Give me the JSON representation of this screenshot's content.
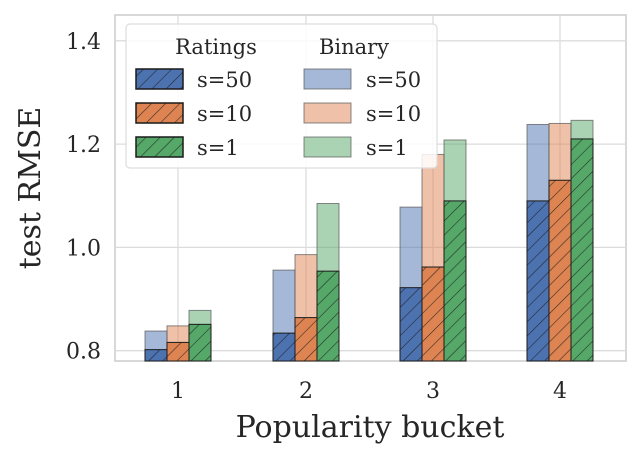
{
  "chart_data": {
    "type": "bar",
    "xlabel": "Popularity bucket",
    "ylabel": "test RMSE",
    "categories": [
      "1",
      "2",
      "3",
      "4"
    ],
    "ylim": [
      0.78,
      1.45
    ],
    "yticks": [
      0.8,
      1.0,
      1.2,
      1.4
    ],
    "ytick_labels": [
      "0.8",
      "1.0",
      "1.2",
      "1.4"
    ],
    "grid": true,
    "legend_placement": "top-left",
    "legend_groups": [
      "Ratings",
      "Binary"
    ],
    "colors": {
      "s=50": "#4c72b0",
      "s=10": "#dd8452",
      "s=1": "#55a868"
    },
    "series": [
      {
        "group": "Ratings",
        "name": "s=50",
        "values": [
          0.802,
          0.834,
          0.922,
          1.09
        ],
        "hatch": true
      },
      {
        "group": "Ratings",
        "name": "s=10",
        "values": [
          0.816,
          0.864,
          0.962,
          1.13
        ],
        "hatch": true
      },
      {
        "group": "Ratings",
        "name": "s=1",
        "values": [
          0.851,
          0.954,
          1.09,
          1.21
        ],
        "hatch": true
      },
      {
        "group": "Binary",
        "name": "s=50",
        "values": [
          0.838,
          0.956,
          1.078,
          1.238
        ],
        "hatch": false
      },
      {
        "group": "Binary",
        "name": "s=10",
        "values": [
          0.848,
          0.986,
          1.18,
          1.24
        ],
        "hatch": false
      },
      {
        "group": "Binary",
        "name": "s=1",
        "values": [
          0.878,
          1.085,
          1.208,
          1.246
        ],
        "hatch": false
      }
    ]
  }
}
